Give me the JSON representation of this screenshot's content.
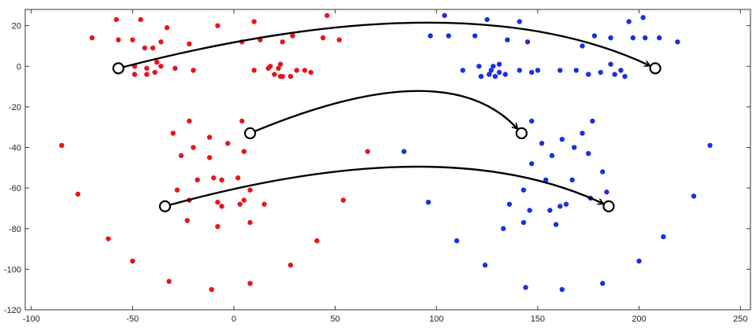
{
  "chart_data": {
    "type": "scatter",
    "title": "",
    "xlabel": "",
    "ylabel": "",
    "xlim": [
      -103,
      255
    ],
    "ylim": [
      -120,
      28
    ],
    "xticks": [
      -100,
      -50,
      0,
      50,
      100,
      150,
      200,
      250
    ],
    "yticks": [
      20,
      0,
      -20,
      -40,
      -60,
      -80,
      -100,
      -120
    ],
    "grid": false,
    "legend": "none",
    "series": [
      {
        "color": "#e8141c",
        "points": [
          [
            -58,
            23
          ],
          [
            -57,
            13
          ],
          [
            -50,
            13
          ],
          [
            -46,
            23
          ],
          [
            -44,
            9
          ],
          [
            -43,
            -1
          ],
          [
            -40,
            9
          ],
          [
            -39,
            -3
          ],
          [
            -36,
            12
          ],
          [
            -33,
            19
          ],
          [
            -29,
            -1
          ],
          [
            -22,
            11
          ],
          [
            -20,
            -2
          ],
          [
            -8,
            20
          ],
          [
            4,
            12
          ],
          [
            10,
            -2
          ],
          [
            10,
            22
          ],
          [
            13,
            13
          ],
          [
            17,
            -1
          ],
          [
            18,
            0
          ],
          [
            20,
            -4
          ],
          [
            22,
            -1
          ],
          [
            23,
            -5
          ],
          [
            23,
            1
          ],
          [
            24,
            -5
          ],
          [
            24,
            12
          ],
          [
            28,
            -5
          ],
          [
            29,
            15
          ],
          [
            31,
            -2
          ],
          [
            35,
            -2
          ],
          [
            38,
            -3
          ],
          [
            44,
            14
          ],
          [
            46,
            25
          ],
          [
            52,
            13
          ],
          [
            -70,
            14
          ],
          [
            -49,
            0
          ],
          [
            -49,
            -4
          ],
          [
            -43,
            -4
          ],
          [
            -38,
            2
          ],
          [
            -36,
            0
          ],
          [
            -22,
            -27
          ],
          [
            -30,
            -33
          ],
          [
            -26,
            -44
          ],
          [
            -20,
            -40
          ],
          [
            -12,
            -35
          ],
          [
            -12,
            -45
          ],
          [
            -10,
            -55
          ],
          [
            -6,
            -56
          ],
          [
            -3,
            -38
          ],
          [
            4,
            -27
          ],
          [
            5,
            -42
          ],
          [
            2,
            -55
          ],
          [
            -8,
            -67
          ],
          [
            -6,
            -69
          ],
          [
            -22,
            -66
          ],
          [
            -23,
            -76
          ],
          [
            -28,
            -61
          ],
          [
            -18,
            -56
          ],
          [
            -8,
            -79
          ],
          [
            3,
            -68
          ],
          [
            5,
            -66
          ],
          [
            8,
            -61
          ],
          [
            8,
            -77
          ],
          [
            15,
            -68
          ],
          [
            8,
            -107
          ],
          [
            28,
            -98
          ],
          [
            41,
            -86
          ],
          [
            54,
            -66
          ],
          [
            66,
            -42
          ],
          [
            -85,
            -39
          ],
          [
            -77,
            -63
          ],
          [
            -62,
            -85
          ],
          [
            -50,
            -96
          ],
          [
            -32,
            -106
          ],
          [
            -11,
            -110
          ]
        ]
      },
      {
        "color": "#1830e0",
        "points": [
          [
            97,
            15
          ],
          [
            104,
            25
          ],
          [
            106,
            15
          ],
          [
            113,
            -2
          ],
          [
            119,
            15
          ],
          [
            121,
            0
          ],
          [
            122,
            -5
          ],
          [
            125,
            23
          ],
          [
            126,
            -4
          ],
          [
            127,
            -2
          ],
          [
            128,
            0
          ],
          [
            129,
            -5
          ],
          [
            131,
            -3
          ],
          [
            131,
            1
          ],
          [
            134,
            -4
          ],
          [
            135,
            13
          ],
          [
            141,
            -2
          ],
          [
            141,
            22
          ],
          [
            145,
            12
          ],
          [
            147,
            -3
          ],
          [
            150,
            -2
          ],
          [
            161,
            -2
          ],
          [
            169,
            -2
          ],
          [
            172,
            10
          ],
          [
            175,
            -4
          ],
          [
            178,
            15
          ],
          [
            181,
            -3
          ],
          [
            186,
            14
          ],
          [
            188,
            -4
          ],
          [
            191,
            -2
          ],
          [
            193,
            -5
          ],
          [
            195,
            22
          ],
          [
            197,
            14
          ],
          [
            202,
            24
          ],
          [
            203,
            14
          ],
          [
            210,
            14
          ],
          [
            219,
            12
          ],
          [
            186,
            1
          ],
          [
            147,
            -27
          ],
          [
            152,
            -38
          ],
          [
            154,
            -56
          ],
          [
            147,
            -48
          ],
          [
            157,
            -44
          ],
          [
            162,
            -36
          ],
          [
            168,
            -40
          ],
          [
            177,
            -27
          ],
          [
            172,
            -33
          ],
          [
            175,
            -43
          ],
          [
            167,
            -56
          ],
          [
            182,
            -52
          ],
          [
            184,
            -62
          ],
          [
            176,
            -65
          ],
          [
            164,
            -68
          ],
          [
            161,
            -69
          ],
          [
            156,
            -71
          ],
          [
            146,
            -71
          ],
          [
            143,
            -61
          ],
          [
            143,
            -77
          ],
          [
            159,
            -78
          ],
          [
            136,
            -68
          ],
          [
            133,
            -80
          ],
          [
            124,
            -98
          ],
          [
            110,
            -86
          ],
          [
            96,
            -67
          ],
          [
            84,
            -42
          ],
          [
            144,
            -109
          ],
          [
            162,
            -110
          ],
          [
            182,
            -107
          ],
          [
            200,
            -96
          ],
          [
            212,
            -84
          ],
          [
            227,
            -64
          ],
          [
            235,
            -39
          ]
        ]
      }
    ],
    "highlight_points": [
      [
        -57,
        -1
      ],
      [
        8,
        -33
      ],
      [
        -34,
        -69
      ],
      [
        142,
        -33
      ],
      [
        208,
        -1
      ],
      [
        185,
        -69
      ]
    ],
    "arrows": [
      {
        "from": [
          -57,
          -1
        ],
        "to": [
          208,
          -1
        ],
        "peak": [
          95,
          21
        ]
      },
      {
        "from": [
          8,
          -33
        ],
        "to": [
          142,
          -33
        ],
        "peak": [
          90,
          -13
        ]
      },
      {
        "from": [
          -34,
          -69
        ],
        "to": [
          185,
          -69
        ],
        "peak": [
          90,
          -50
        ]
      }
    ]
  }
}
